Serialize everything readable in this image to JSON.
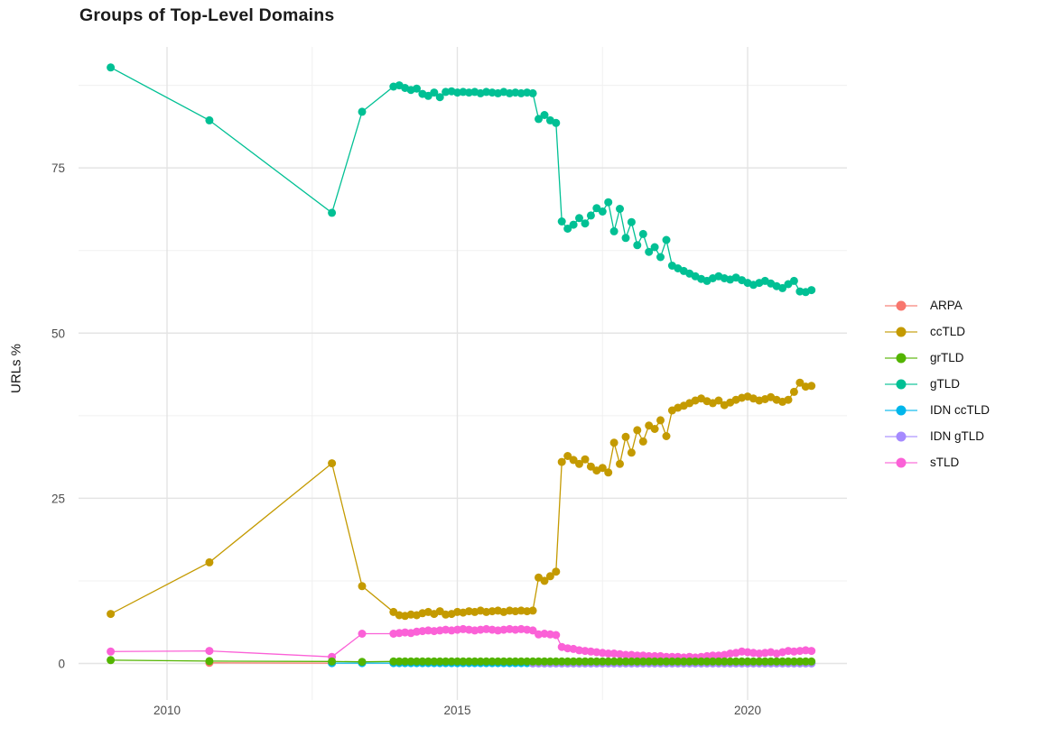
{
  "page": {
    "title": "Groups of Top-Level Domains"
  },
  "chart_data": {
    "type": "line",
    "title": "Groups of Top-Level Domains",
    "xlabel": "",
    "ylabel": "URLs %",
    "xlim": [
      2008.5,
      2021.7
    ],
    "ylim": [
      -1.5,
      93.5
    ],
    "grid": true,
    "legend_position": "right",
    "text_color": "#4d4d4d",
    "grid_major_color": "#e4e4e4",
    "grid_minor_color": "#f0f0f0",
    "x_ticks": [
      {
        "value": 2010,
        "label": "2010"
      },
      {
        "value": 2015,
        "label": "2015"
      },
      {
        "value": 2020,
        "label": "2020"
      }
    ],
    "y_ticks": [
      {
        "value": 0,
        "label": "0"
      },
      {
        "value": 25,
        "label": "25"
      },
      {
        "value": 50,
        "label": "50"
      },
      {
        "value": 75,
        "label": "75"
      }
    ],
    "x_dense": [
      2013.9,
      2014.0,
      2014.1,
      2014.2,
      2014.3,
      2014.4,
      2014.5,
      2014.6,
      2014.7,
      2014.8,
      2014.9,
      2015.0,
      2015.1,
      2015.2,
      2015.3,
      2015.4,
      2015.5,
      2015.6,
      2015.7,
      2015.8,
      2015.9,
      2016.0,
      2016.1,
      2016.2,
      2016.3,
      2016.4,
      2016.5,
      2016.6,
      2016.7,
      2016.8,
      2016.9,
      2017.0,
      2017.1,
      2017.2,
      2017.3,
      2017.4,
      2017.5,
      2017.6,
      2017.7,
      2017.8,
      2017.9,
      2018.0,
      2018.1,
      2018.2,
      2018.3,
      2018.4,
      2018.5,
      2018.6,
      2018.7,
      2018.8,
      2018.9,
      2019.0,
      2019.1,
      2019.2,
      2019.3,
      2019.4,
      2019.5,
      2019.6,
      2019.7,
      2019.8,
      2019.9,
      2020.0,
      2020.1,
      2020.2,
      2020.3,
      2020.4,
      2020.5,
      2020.6,
      2020.7,
      2020.8,
      2020.9,
      2021.0,
      2021.1
    ],
    "series": [
      {
        "name": "ARPA",
        "color": "#F8766D",
        "draw_order": 0,
        "sparse": [
          [
            2010.73,
            0.1
          ],
          [
            2012.84,
            0.05
          ]
        ],
        "dense": null
      },
      {
        "name": "ccTLD",
        "color": "#C49A00",
        "draw_order": 3,
        "sparse": [
          [
            2009.03,
            7.5
          ],
          [
            2010.73,
            15.3
          ],
          [
            2012.84,
            30.3
          ],
          [
            2013.36,
            11.7
          ]
        ],
        "dense": [
          7.8,
          7.3,
          7.2,
          7.4,
          7.3,
          7.6,
          7.8,
          7.5,
          7.9,
          7.4,
          7.5,
          7.8,
          7.7,
          7.9,
          7.8,
          8.0,
          7.8,
          7.9,
          8.0,
          7.8,
          8.0,
          7.9,
          8.0,
          7.9,
          8.0,
          13.0,
          12.5,
          13.2,
          13.9,
          30.5,
          31.4,
          30.8,
          30.2,
          30.9,
          29.8,
          29.2,
          29.6,
          28.9,
          33.4,
          30.2,
          34.3,
          31.9,
          35.3,
          33.6,
          36.0,
          35.5,
          36.8,
          34.4,
          38.3,
          38.7,
          39.0,
          39.4,
          39.8,
          40.1,
          39.7,
          39.4,
          39.8,
          39.1,
          39.5,
          39.9,
          40.2,
          40.4,
          40.1,
          39.8,
          40.0,
          40.3,
          39.9,
          39.6,
          39.9,
          41.1,
          42.5,
          41.9,
          42.0
        ]
      },
      {
        "name": "grTLD",
        "color": "#53B400",
        "draw_order": 6,
        "sparse": [
          [
            2009.03,
            0.5
          ],
          [
            2010.73,
            0.35
          ],
          [
            2012.84,
            0.3
          ],
          [
            2013.36,
            0.25
          ]
        ],
        "dense": [
          0.3,
          0.3,
          0.3,
          0.3,
          0.3,
          0.3,
          0.3,
          0.3,
          0.3,
          0.3,
          0.3,
          0.3,
          0.3,
          0.3,
          0.3,
          0.3,
          0.3,
          0.3,
          0.3,
          0.3,
          0.3,
          0.3,
          0.3,
          0.3,
          0.3,
          0.3,
          0.3,
          0.3,
          0.3,
          0.3,
          0.3,
          0.3,
          0.3,
          0.3,
          0.3,
          0.3,
          0.3,
          0.3,
          0.3,
          0.3,
          0.3,
          0.3,
          0.3,
          0.3,
          0.3,
          0.3,
          0.3,
          0.3,
          0.3,
          0.3,
          0.3,
          0.3,
          0.3,
          0.3,
          0.3,
          0.3,
          0.3,
          0.3,
          0.3,
          0.3,
          0.3,
          0.3,
          0.3,
          0.3,
          0.3,
          0.3,
          0.3,
          0.3,
          0.3,
          0.3,
          0.3,
          0.3,
          0.3
        ]
      },
      {
        "name": "gTLD",
        "color": "#00C094",
        "draw_order": 4,
        "sparse": [
          [
            2009.03,
            90.2
          ],
          [
            2010.73,
            82.2
          ],
          [
            2012.84,
            68.2
          ],
          [
            2013.36,
            83.5
          ]
        ],
        "dense": [
          87.3,
          87.5,
          87.1,
          86.8,
          87.0,
          86.2,
          85.9,
          86.4,
          85.7,
          86.5,
          86.6,
          86.4,
          86.5,
          86.4,
          86.5,
          86.3,
          86.5,
          86.4,
          86.3,
          86.5,
          86.3,
          86.4,
          86.3,
          86.4,
          86.3,
          82.4,
          83.0,
          82.2,
          81.8,
          66.9,
          65.8,
          66.4,
          67.4,
          66.6,
          67.8,
          68.9,
          68.4,
          69.8,
          65.4,
          68.8,
          64.4,
          66.8,
          63.3,
          65.0,
          62.3,
          63.0,
          61.5,
          64.1,
          60.2,
          59.8,
          59.4,
          59.0,
          58.6,
          58.2,
          57.9,
          58.3,
          58.6,
          58.3,
          58.1,
          58.4,
          58.0,
          57.6,
          57.3,
          57.6,
          57.9,
          57.5,
          57.1,
          56.8,
          57.4,
          57.9,
          56.3,
          56.2,
          56.5
        ]
      },
      {
        "name": "IDN ccTLD",
        "color": "#00B6EB",
        "draw_order": 1,
        "sparse": [
          [
            2012.84,
            0.05
          ],
          [
            2013.36,
            0.05
          ]
        ],
        "dense": [
          0.05,
          0.05,
          0.05,
          0.05,
          0.05,
          0.05,
          0.05,
          0.05,
          0.05,
          0.05,
          0.05,
          0.05,
          0.05,
          0.05,
          0.05,
          0.05,
          0.05,
          0.05,
          0.05,
          0.05,
          0.05,
          0.05,
          0.05,
          0.05,
          0.05,
          0.05,
          0.05,
          0.05,
          0.05,
          0.05,
          0.05,
          0.05,
          0.05,
          0.05,
          0.05,
          0.05,
          0.05,
          0.05,
          0.05,
          0.05,
          0.05,
          0.05,
          0.05,
          0.05,
          0.05,
          0.05,
          0.05,
          0.05,
          0.05,
          0.05,
          0.05,
          0.05,
          0.05,
          0.05,
          0.05,
          0.05,
          0.05,
          0.05,
          0.05,
          0.05,
          0.05,
          0.05,
          0.05,
          0.05,
          0.05,
          0.05,
          0.05,
          0.05,
          0.05,
          0.05,
          0.05,
          0.05,
          0.05
        ]
      },
      {
        "name": "IDN gTLD",
        "color": "#A58AFF",
        "draw_order": 2,
        "sparse": [],
        "dense": [
          null,
          null,
          null,
          null,
          null,
          null,
          null,
          null,
          null,
          null,
          null,
          null,
          null,
          null,
          null,
          null,
          null,
          null,
          null,
          null,
          null,
          null,
          null,
          null,
          0.0,
          0.0,
          0.0,
          0.0,
          0.0,
          0.0,
          0.0,
          0.0,
          0.0,
          0.0,
          0.0,
          0.0,
          0.0,
          0.0,
          0.0,
          0.0,
          0.0,
          0.0,
          0.0,
          0.0,
          0.0,
          0.0,
          0.0,
          0.0,
          0.0,
          0.0,
          0.0,
          0.0,
          0.0,
          0.0,
          0.0,
          0.0,
          0.0,
          0.0,
          0.0,
          0.0,
          0.0,
          0.0,
          0.0,
          0.0,
          0.0,
          0.0,
          0.0,
          0.0,
          0.0,
          0.0,
          0.0,
          0.0,
          0.0
        ]
      },
      {
        "name": "sTLD",
        "color": "#FB61D7",
        "draw_order": 5,
        "sparse": [
          [
            2009.03,
            1.8
          ],
          [
            2010.73,
            1.9
          ],
          [
            2012.84,
            1.0
          ],
          [
            2013.36,
            4.5
          ]
        ],
        "dense": [
          4.5,
          4.6,
          4.7,
          4.6,
          4.8,
          4.9,
          5.0,
          4.9,
          5.0,
          5.1,
          5.0,
          5.1,
          5.2,
          5.1,
          5.0,
          5.1,
          5.2,
          5.1,
          5.0,
          5.1,
          5.2,
          5.1,
          5.2,
          5.1,
          5.0,
          4.4,
          4.5,
          4.4,
          4.3,
          2.5,
          2.3,
          2.2,
          2.0,
          1.9,
          1.8,
          1.7,
          1.6,
          1.5,
          1.5,
          1.4,
          1.3,
          1.3,
          1.2,
          1.2,
          1.1,
          1.1,
          1.1,
          1.0,
          1.0,
          1.0,
          0.9,
          1.0,
          0.9,
          1.0,
          1.1,
          1.2,
          1.2,
          1.3,
          1.5,
          1.6,
          1.8,
          1.7,
          1.6,
          1.5,
          1.6,
          1.7,
          1.5,
          1.7,
          1.9,
          1.8,
          1.9,
          2.0,
          1.9
        ]
      }
    ]
  }
}
